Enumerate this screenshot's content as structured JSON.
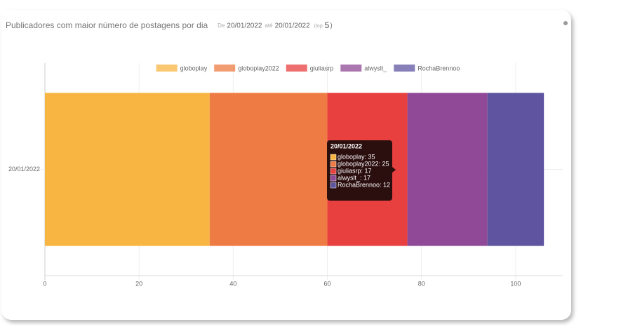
{
  "header": {
    "title": "Publicadores com maior número de postagens por dia",
    "from_label": "De",
    "from": "20/01/2022",
    "to_label": "até",
    "to": "20/01/2022",
    "top_label": "(top:",
    "top": 5,
    "top_close": ")"
  },
  "chart_data": {
    "type": "stacked-horizontal-bar",
    "categories": [
      "20/01/2022"
    ],
    "series": [
      {
        "name": "globoplay",
        "color": "#f8b541",
        "values": [
          35
        ]
      },
      {
        "name": "globoplay2022",
        "color": "#ee7b43",
        "values": [
          25
        ]
      },
      {
        "name": "giuliasrp",
        "color": "#e83f3f",
        "values": [
          17
        ]
      },
      {
        "name": "alwyslt_",
        "color": "#8f4996",
        "values": [
          17
        ]
      },
      {
        "name": "RochaBrennoo",
        "color": "#5f54a0",
        "values": [
          12
        ]
      }
    ],
    "xlim": [
      0,
      110
    ],
    "xticks": [
      0,
      20,
      40,
      60,
      80,
      100
    ],
    "grid": true,
    "legend": "top",
    "tooltip": {
      "title": "20/01/2022",
      "lines": [
        "globoplay: 35",
        "globoplay2022: 25",
        "giuliasrp: 17",
        "alwyslt_: 17",
        "RochaBrennoo: 12"
      ]
    }
  }
}
